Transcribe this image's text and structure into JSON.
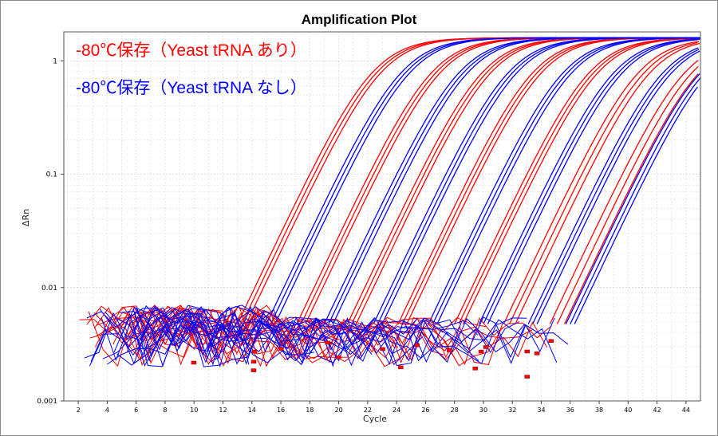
{
  "chart_data": {
    "type": "line",
    "title": "Amplification Plot",
    "xlabel": "Cycle",
    "ylabel": "ΔRn",
    "xlim": [
      1,
      45
    ],
    "ylim": [
      0.001,
      1.8
    ],
    "yscale": "log",
    "x_ticks": [
      2,
      4,
      6,
      8,
      10,
      12,
      14,
      16,
      18,
      20,
      22,
      24,
      26,
      28,
      30,
      32,
      34,
      36,
      38,
      40,
      42,
      44
    ],
    "x_tick_labels": [
      "2",
      "4",
      "6",
      "8",
      "10",
      "12",
      "14",
      "16",
      "18",
      "20",
      "22",
      "24",
      "26",
      "28",
      "30",
      "32",
      "34",
      "36",
      "38",
      "40",
      "42",
      "44"
    ],
    "y_ticks": [
      0.001,
      0.01,
      0.1,
      1
    ],
    "y_tick_labels": [
      "0.001",
      "0.01",
      "0.1",
      "1"
    ],
    "grid": true,
    "legend_position": "top-left",
    "series": [
      {
        "name": "-80℃保存（Yeast tRNA あり）",
        "color": "#ff0000",
        "threshold_cycles": [
          14.2,
          14.5,
          14.8,
          18.3,
          18.6,
          18.9,
          21.8,
          22.1,
          22.4,
          25.3,
          25.6,
          25.9,
          29.2,
          29.5,
          29.8,
          32.6,
          33.0,
          33.4,
          35.8,
          36.3,
          36.8
        ]
      },
      {
        "name": "-80℃保存（Yeast tRNA なし）",
        "color": "#0000ff",
        "threshold_cycles": [
          16.2,
          16.5,
          16.8,
          20.2,
          20.5,
          20.8,
          23.6,
          23.9,
          24.2,
          27.4,
          27.7,
          28.0,
          30.9,
          31.2,
          31.5,
          34.3,
          34.6,
          34.9,
          36.9,
          37.2,
          37.5
        ]
      }
    ]
  }
}
